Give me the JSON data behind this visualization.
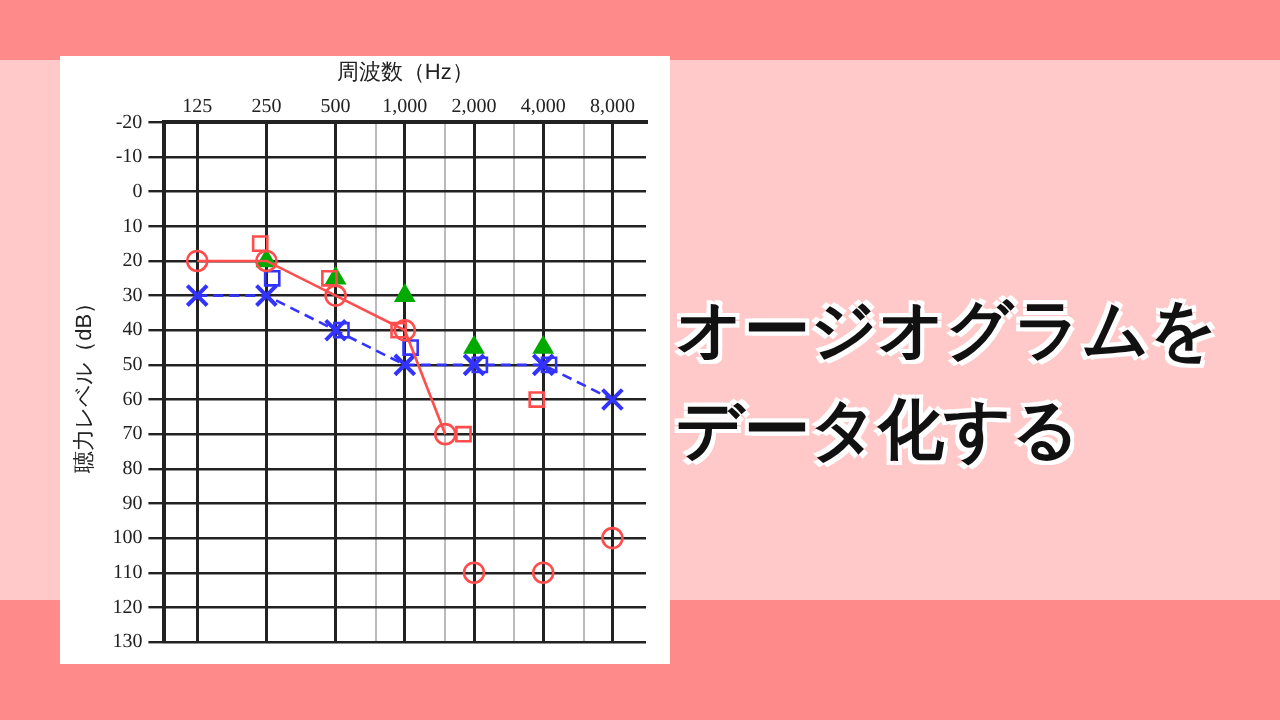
{
  "chart_data": {
    "type": "line",
    "title": "オージオグラムをデータ化する",
    "xlabel": "周波数（Hz）",
    "ylabel": "聴力レベル（dB）",
    "log": "x",
    "xlim": [
      90,
      11200
    ],
    "xticks": [
      {
        "value": 125,
        "label": "125"
      },
      {
        "value": 250,
        "label": "250"
      },
      {
        "value": 500,
        "label": "500"
      },
      {
        "value": 750,
        "label": null
      },
      {
        "value": 1000,
        "label": "1,000"
      },
      {
        "value": 1500,
        "label": null
      },
      {
        "value": 2000,
        "label": "2,000"
      },
      {
        "value": 3000,
        "label": null
      },
      {
        "value": 4000,
        "label": "4,000"
      },
      {
        "value": 6000,
        "label": null
      },
      {
        "value": 8000,
        "label": "8,000"
      }
    ],
    "ylim": [
      130,
      -20
    ],
    "yticks": [
      -20,
      -10,
      0,
      10,
      20,
      30,
      40,
      50,
      60,
      70,
      80,
      90,
      100,
      110,
      120,
      130
    ],
    "grid": true,
    "legend": false,
    "series": [
      {
        "type": "line",
        "color": "#ff4d4d",
        "marker": "circle",
        "line_style": "solid",
        "x": [
          125,
          250,
          500,
          1000,
          1500
        ],
        "values": [
          20,
          20,
          30,
          40,
          70
        ]
      },
      {
        "type": "scatter",
        "color": "#ff4d4d",
        "marker": "circle",
        "x": [
          2000,
          4000,
          8000
        ],
        "values": [
          110,
          110,
          100
        ]
      },
      {
        "type": "line",
        "color": "#3333ff",
        "marker": "cross",
        "line_style": "dashed",
        "x": [
          125,
          250,
          500,
          1000,
          2000,
          4000,
          8000
        ],
        "values": [
          30,
          30,
          40,
          50,
          50,
          50,
          60
        ]
      },
      {
        "type": "scatter",
        "color": "#ff4d4d",
        "marker": "square",
        "x": [
          235,
          470,
          940,
          1800,
          3750
        ],
        "values": [
          15,
          25,
          40,
          70,
          60
        ]
      },
      {
        "type": "scatter",
        "color": "#3333ff",
        "marker": "square",
        "x": [
          265,
          530,
          1060,
          2120,
          4240
        ],
        "values": [
          25,
          40,
          45,
          50,
          50
        ]
      },
      {
        "type": "scatter",
        "color": "#00aa00",
        "marker": "triangle",
        "x": [
          250,
          500,
          1000,
          2000,
          4000
        ],
        "values": [
          20,
          25,
          30,
          45,
          45
        ]
      }
    ]
  }
}
